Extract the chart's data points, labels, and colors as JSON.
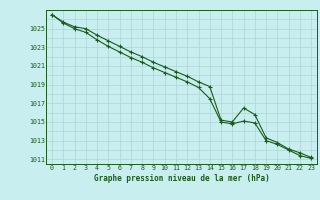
{
  "title": "Graphe pression niveau de la mer (hPa)",
  "background_color": "#c8eef0",
  "line_color": "#1a5c1a",
  "grid_color": "#aed4d6",
  "series1": [
    [
      0,
      1026.5
    ],
    [
      1,
      1025.7
    ],
    [
      2,
      1025.2
    ],
    [
      3,
      1025.0
    ],
    [
      4,
      1024.3
    ],
    [
      5,
      1023.7
    ],
    [
      6,
      1023.1
    ],
    [
      7,
      1022.5
    ],
    [
      8,
      1022.0
    ],
    [
      9,
      1021.4
    ],
    [
      10,
      1020.9
    ],
    [
      11,
      1020.4
    ],
    [
      12,
      1019.9
    ],
    [
      13,
      1019.3
    ],
    [
      14,
      1018.8
    ],
    [
      15,
      1015.2
    ],
    [
      16,
      1015.0
    ],
    [
      17,
      1016.5
    ],
    [
      18,
      1015.8
    ],
    [
      19,
      1013.3
    ],
    [
      20,
      1012.8
    ],
    [
      21,
      1012.1
    ],
    [
      22,
      1011.7
    ],
    [
      23,
      1011.2
    ]
  ],
  "series2": [
    [
      0,
      1026.5
    ],
    [
      1,
      1025.6
    ],
    [
      2,
      1025.0
    ],
    [
      3,
      1024.6
    ],
    [
      4,
      1023.8
    ],
    [
      5,
      1023.1
    ],
    [
      6,
      1022.5
    ],
    [
      7,
      1021.9
    ],
    [
      8,
      1021.4
    ],
    [
      9,
      1020.8
    ],
    [
      10,
      1020.3
    ],
    [
      11,
      1019.8
    ],
    [
      12,
      1019.3
    ],
    [
      13,
      1018.7
    ],
    [
      14,
      1017.5
    ],
    [
      15,
      1015.0
    ],
    [
      16,
      1014.8
    ],
    [
      17,
      1015.1
    ],
    [
      18,
      1014.9
    ],
    [
      19,
      1013.0
    ],
    [
      20,
      1012.6
    ],
    [
      21,
      1012.0
    ],
    [
      22,
      1011.4
    ],
    [
      23,
      1011.1
    ]
  ],
  "ylim": [
    1010.5,
    1027.0
  ],
  "xlim": [
    -0.5,
    23.5
  ],
  "yticks": [
    1011,
    1013,
    1015,
    1017,
    1019,
    1021,
    1023,
    1025
  ],
  "xticks": [
    0,
    1,
    2,
    3,
    4,
    5,
    6,
    7,
    8,
    9,
    10,
    11,
    12,
    13,
    14,
    15,
    16,
    17,
    18,
    19,
    20,
    21,
    22,
    23
  ],
  "figsize": [
    3.2,
    2.0
  ],
  "dpi": 100
}
